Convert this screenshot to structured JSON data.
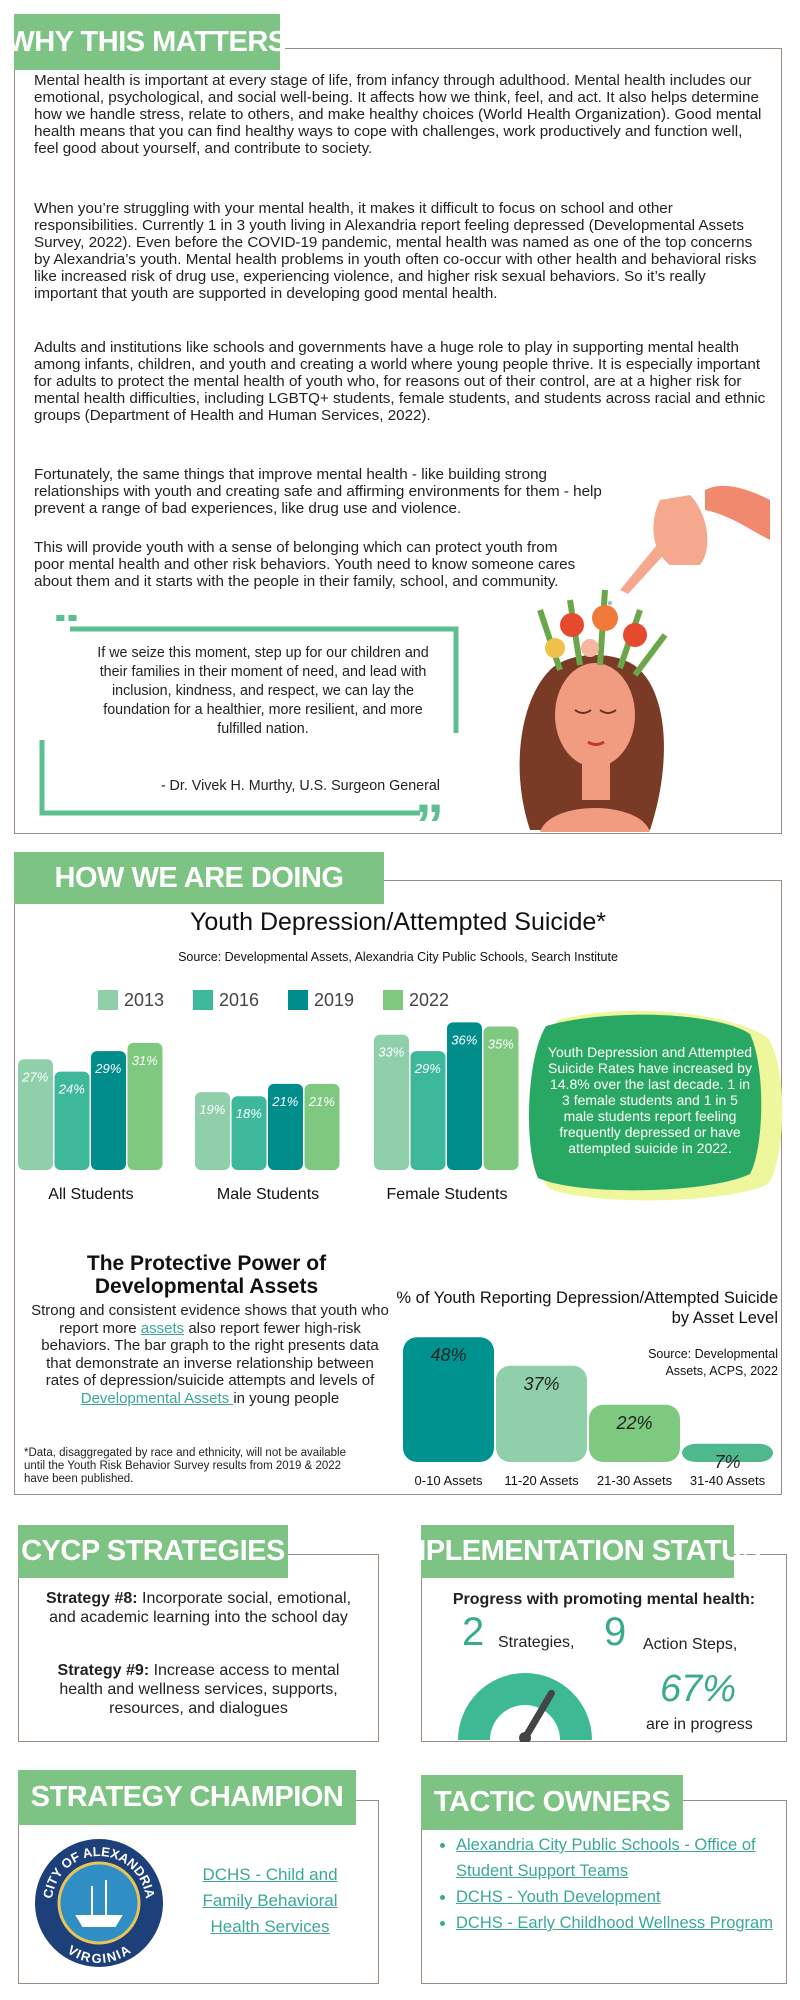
{
  "why": {
    "title": "WHY THIS MATTERS",
    "paragraphs": [
      "Mental health is important at every stage of life, from infancy through adulthood. Mental health includes our emotional, psychological, and social well-being. It affects how we think, feel, and act. It also helps determine how we handle stress, relate to others, and make healthy choices (World Health Organization). Good mental health means that you can find healthy ways to cope with challenges, work productively and function well, feel good about yourself, and contribute to society.",
      "When you’re struggling with your mental health, it makes it difficult to focus on school and other responsibilities. Currently 1 in 3 youth living in Alexandria report feeling depressed (Developmental Assets Survey, 2022). Even before the COVID-19 pandemic, mental health was named as one of the top concerns by Alexandria’s youth. Mental health problems in youth often co-occur with other health and behavioral risks like increased risk of drug use, experiencing violence, and higher risk sexual behaviors. So it’s really important that youth are supported in developing good mental health.",
      "Adults and institutions like schools and governments have a huge role to play in supporting mental health among infants, children, and youth and creating a world where young people thrive. It is especially important for adults to protect the mental health of youth who, for reasons out of their control, are at a higher risk for mental health difficulties, including LGBTQ+ students, female students, and students across racial and ethnic groups (Department of Health and Human Services, 2022).",
      "Fortunately, the same things that improve mental health - like building strong relationships with youth and creating safe and affirming environments for them - help prevent a range of bad experiences, like drug use and violence.",
      "This will provide youth with a sense of belonging which can protect youth from poor mental health and other risk behaviors. Youth need to know someone cares about them and it starts with the people in their family, school, and community."
    ],
    "quote": "If we seize this moment, step up for our children and their families in their moment of need, and lead with inclusion, kindness, and respect, we can lay the foundation for a healthier, more resilient, and more fulfilled nation.",
    "attribution": "- Dr. Vivek H. Murthy, U.S. Surgeon General"
  },
  "doing": {
    "title": "HOW WE ARE DOING",
    "callout": "Youth Depression and Attempted Suicide Rates have increased by 14.8% over the last decade. 1 in 3 female students and 1 in 5 male students report feeling frequently depressed or have attempted suicide in 2022.",
    "protective_title": "The Protective Power of Developmental Assets",
    "protective_text": [
      "Strong and consistent evidence shows that youth who report more ",
      "assets",
      " also report fewer high-risk behaviors. The bar graph to the right presents data that demonstrate an inverse relationship between rates of depression/suicide attempts and levels of ",
      "Developmental Assets ",
      "in young people"
    ],
    "footnote": "*Data, disaggregated by race and ethnicity, will not be available until the Youth Risk Behavior Survey results from 2019 & 2022 have been published."
  },
  "chart_data": [
    {
      "type": "bar",
      "title": "Youth Depression/Attempted Suicide*",
      "subtitle": "Source: Developmental Assets, Alexandria City Public Schools, Search Institute",
      "categories": [
        "All Students",
        "Male Students",
        "Female Students"
      ],
      "series": [
        {
          "name": "2013",
          "color": "#8fd0ab",
          "values": [
            27,
            19,
            33
          ],
          "value_labels": [
            "27%",
            "19%",
            "33%"
          ]
        },
        {
          "name": "2016",
          "color": "#3db89b",
          "values": [
            24,
            18,
            29
          ],
          "value_labels": [
            "24%",
            "18%",
            "29%"
          ]
        },
        {
          "name": "2019",
          "color": "#008d8c",
          "values": [
            29,
            21,
            36
          ],
          "value_labels": [
            "29%",
            "21%",
            "36%"
          ]
        },
        {
          "name": "2022",
          "color": "#7ec97f",
          "values": [
            31,
            21,
            35
          ],
          "value_labels": [
            "31%",
            "21%",
            "35%"
          ]
        }
      ]
    },
    {
      "type": "bar",
      "title": "% of Youth Reporting Depression/Attempted Suicide by Asset Level",
      "subtitle": "Source: Developmental Assets, ACPS, 2022",
      "categories": [
        "0-10 Assets",
        "11-20 Assets",
        "21-30 Assets",
        "31-40 Assets"
      ],
      "values": [
        48,
        37,
        22,
        7
      ],
      "value_labels": [
        "48%",
        "37%",
        "22%",
        "7%"
      ],
      "colors": [
        "#00928f",
        "#8fcfaa",
        "#7cc97f",
        "#4fb88f"
      ]
    }
  ],
  "strategies": {
    "title": "CYCP STRATEGIES",
    "items": [
      {
        "label": "Strategy #8:",
        "text": " Incorporate social, emotional, and academic learning into the school day"
      },
      {
        "label": "Strategy #9:",
        "text": " Increase access to mental health and wellness services, supports, resources, and dialogues"
      }
    ]
  },
  "status": {
    "title": "IMPLEMENTATION STATUS",
    "lead": "Progress with promoting mental health:",
    "strategies_count": 2,
    "strategies_label": "Strategies,",
    "actions_count": 9,
    "actions_label": "Action Steps,",
    "progress": {
      "value": 67,
      "label": "67%"
    },
    "progress_text": "are in progress"
  },
  "champion": {
    "title": "STRATEGY CHAMPION",
    "seal_top": "CITY OF ALEXANDRIA",
    "seal_bottom": "VIRGINIA",
    "link": "DCHS - Child and Family Behavioral Health Services"
  },
  "owners": {
    "title": "TACTIC OWNERS",
    "items": [
      "Alexandria City Public Schools - Office of Student Support Teams",
      "DCHS - Youth Development",
      "DCHS - Early Childhood Wellness Program"
    ]
  }
}
